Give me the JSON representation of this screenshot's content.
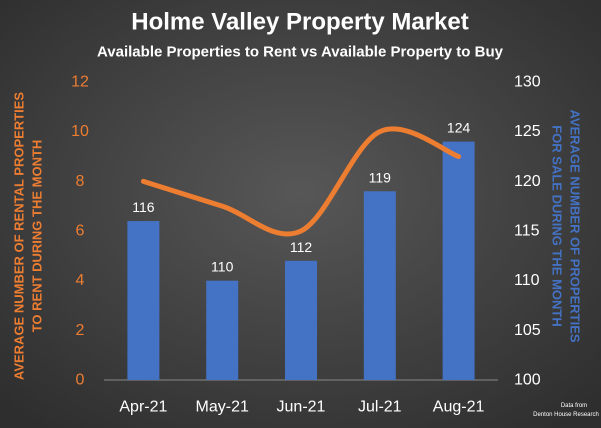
{
  "chart_data": {
    "type": "combo",
    "title": "Holme Valley Property Market",
    "subtitle": "Available Properties to Rent vs Available Property to Buy",
    "categories": [
      "Apr-21",
      "May-21",
      "Jun-21",
      "Jul-21",
      "Aug-21"
    ],
    "series": [
      {
        "type": "bar",
        "axis": "y2",
        "color": "#4472c4",
        "values": [
          116,
          110,
          112,
          119,
          124
        ]
      },
      {
        "type": "line",
        "color": "#ed7d31",
        "smooth": true,
        "values": [
          8,
          7,
          6,
          10,
          9
        ]
      }
    ],
    "ylim": [
      0,
      12
    ],
    "yticks": [
      0,
      2,
      4,
      6,
      8,
      10,
      12
    ],
    "y2lim": [
      100,
      130
    ],
    "y2ticks": [
      100,
      105,
      110,
      115,
      120,
      125,
      130
    ],
    "y_label": [
      "AVERAGE NUMBER OF RENTAL PROPERTIES",
      "TO RENT DURING  THE MONTH"
    ],
    "y2_label": [
      "AVERAGE NUMBER OF PROPERTIES",
      "FOR SALE DURING THE MONTH"
    ],
    "note": [
      "Data from",
      "Denton House Research"
    ],
    "grid": false
  }
}
